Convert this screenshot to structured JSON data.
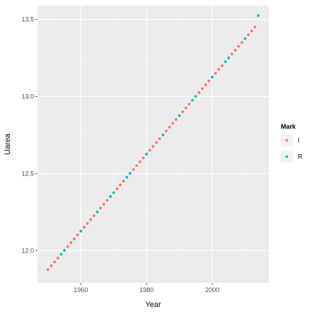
{
  "chart_data": {
    "type": "scatter",
    "title": "",
    "xlabel": "Year",
    "ylabel": "Uarea",
    "xlim": [
      1946.8,
      2017.2
    ],
    "ylim": [
      11.79,
      13.59
    ],
    "x_ticks": [
      1960,
      1980,
      2000
    ],
    "x_tick_labels": [
      "1960",
      "1980",
      "2000"
    ],
    "y_ticks": [
      12.0,
      12.5,
      13.0,
      13.5
    ],
    "y_tick_labels": [
      "12.0",
      "12.5",
      "13.0",
      "13.5"
    ],
    "grid": true,
    "legend": {
      "title": "Mark",
      "position": "right",
      "entries": [
        {
          "label": "I",
          "color": "#F8766D"
        },
        {
          "label": "R",
          "color": "#00BFC4"
        }
      ]
    },
    "colors": {
      "panel_background": "#EBEBEB",
      "grid_major": "#FFFFFF",
      "I": "#F8766D",
      "R": "#00BFC4"
    },
    "series": [
      {
        "name": "I",
        "color": "#F8766D",
        "x": [
          1950,
          1951,
          1952,
          1953,
          1956,
          1957,
          1958,
          1959,
          1961,
          1962,
          1963,
          1964,
          1966,
          1967,
          1968,
          1971,
          1972,
          1973,
          1976,
          1977,
          1978,
          1979,
          1981,
          1982,
          1983,
          1984,
          1986,
          1987,
          1988,
          1989,
          1991,
          1992,
          1993,
          1996,
          1997,
          1998,
          1999,
          2001,
          2002,
          2003,
          2006,
          2007,
          2008,
          2009,
          2011,
          2012,
          2013
        ],
        "y": [
          11.876,
          11.901,
          11.926,
          11.951,
          12.026,
          12.051,
          12.076,
          12.101,
          12.151,
          12.176,
          12.201,
          12.226,
          12.276,
          12.301,
          12.326,
          12.401,
          12.426,
          12.451,
          12.526,
          12.551,
          12.576,
          12.601,
          12.651,
          12.676,
          12.701,
          12.726,
          12.776,
          12.801,
          12.826,
          12.851,
          12.901,
          12.926,
          12.951,
          13.026,
          13.051,
          13.076,
          13.101,
          13.151,
          13.176,
          13.201,
          13.276,
          13.301,
          13.326,
          13.351,
          13.401,
          13.426,
          13.451
        ]
      },
      {
        "name": "R",
        "color": "#00BFC4",
        "x": [
          1954,
          1955,
          1960,
          1965,
          1969,
          1970,
          1974,
          1975,
          1980,
          1985,
          1990,
          1994,
          1995,
          2000,
          2004,
          2005,
          2010,
          2014
        ],
        "y": [
          11.976,
          12.001,
          12.126,
          12.251,
          12.351,
          12.376,
          12.476,
          12.501,
          12.626,
          12.751,
          12.876,
          12.976,
          13.001,
          13.126,
          13.226,
          13.251,
          13.376,
          13.526
        ]
      }
    ]
  }
}
